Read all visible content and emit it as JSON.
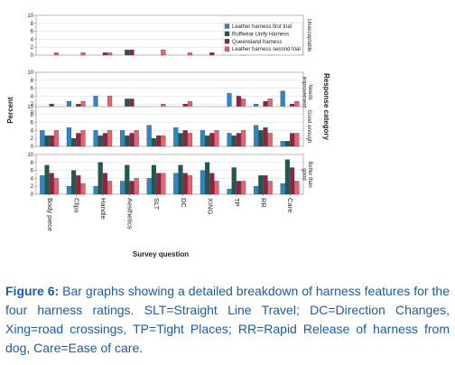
{
  "caption": {
    "label": "Figure 6:",
    "text": "Bar graphs showing a detailed breakdown of harness features for the four harness ratings. SLT=Straight Line Travel; DC=Direction Changes, Xing=road crossings, TP=Tight Places; RR=Rapid Release of harness from dog, Care=Ease of care."
  },
  "colors": {
    "Leather harness  first trial": "#2f86c6",
    "Ruffwear Unify Harness": "#1e5a4f",
    "Queensland harness": "#8e2444",
    "Leather harness second trial": "#e8636f"
  },
  "chart_data": {
    "type": "bar",
    "title": "",
    "xlabel": "Survey question",
    "ylabel": "Percent",
    "right_axis_label": "Response category",
    "ylim": [
      0,
      10
    ],
    "yticks": [
      0,
      2,
      4,
      6,
      8,
      10
    ],
    "categories": [
      "Body piece",
      "Clips",
      "Handle",
      "Aesthetics",
      "SLT",
      "DC",
      "XING",
      "TP",
      "RR",
      "Care"
    ],
    "legend": {
      "placement": "top-right",
      "entries": [
        "Leather harness  first trial",
        "Ruffwear Unify Harness",
        "Queensland harness",
        "Leather harness second trial"
      ]
    },
    "panels": [
      {
        "label": "Unacceptable",
        "series": [
          {
            "name": "Leather harness  first trial",
            "values": [
              0,
              0,
              0,
              0,
              0,
              0,
              0,
              0,
              0,
              0
            ]
          },
          {
            "name": "Ruffwear Unify Harness",
            "values": [
              0,
              0,
              0,
              1.3,
              0,
              0,
              0,
              0,
              0,
              0
            ]
          },
          {
            "name": "Queensland harness",
            "values": [
              0,
              0,
              0.6,
              1.3,
              0,
              0,
              0.6,
              0,
              0,
              0
            ]
          },
          {
            "name": "Leather harness second trial",
            "values": [
              0.6,
              0.6,
              0.6,
              0,
              1.3,
              0.6,
              0,
              0.6,
              0.6,
              0
            ]
          }
        ]
      },
      {
        "label": "Needs improvement",
        "series": [
          {
            "name": "Leather harness  first trial",
            "values": [
              1.3,
              2.7,
              4.0,
              1.3,
              0,
              0,
              0,
              4.7,
              2.0,
              5.3
            ]
          },
          {
            "name": "Ruffwear Unify Harness",
            "values": [
              0,
              1.3,
              0,
              3.3,
              1.3,
              1.3,
              1.3,
              1.3,
              1.3,
              0
            ]
          },
          {
            "name": "Queensland harness",
            "values": [
              2.0,
              2.0,
              1.3,
              3.3,
              1.3,
              2.0,
              1.3,
              4.0,
              2.7,
              2.0
            ]
          },
          {
            "name": "Leather harness second trial",
            "values": [
              1.3,
              2.7,
              4.0,
              0,
              2.0,
              2.7,
              0,
              3.3,
              3.3,
              2.7
            ]
          }
        ]
      },
      {
        "label": "Good enough",
        "series": [
          {
            "name": "Leather harness  first trial",
            "values": [
              4.0,
              4.7,
              4.0,
              4.0,
              5.3,
              4.7,
              4.0,
              3.3,
              5.3,
              1.3
            ]
          },
          {
            "name": "Ruffwear Unify Harness",
            "values": [
              2.7,
              2.0,
              2.7,
              2.7,
              2.0,
              3.3,
              2.7,
              2.7,
              4.0,
              1.3
            ]
          },
          {
            "name": "Queensland harness",
            "values": [
              2.7,
              3.3,
              3.3,
              3.3,
              2.7,
              4.0,
              3.3,
              3.3,
              4.7,
              3.3
            ]
          },
          {
            "name": "Leather harness second trial",
            "values": [
              4.0,
              4.0,
              4.0,
              4.0,
              2.7,
              3.3,
              4.0,
              4.0,
              3.3,
              3.3
            ]
          }
        ]
      },
      {
        "label": "Better than good",
        "series": [
          {
            "name": "Leather harness  first trial",
            "values": [
              4.7,
              2.0,
              2.0,
              3.3,
              4.0,
              5.3,
              6.0,
              1.3,
              2.0,
              2.7
            ]
          },
          {
            "name": "Ruffwear Unify Harness",
            "values": [
              7.3,
              6.0,
              8.0,
              7.3,
              7.3,
              7.3,
              8.0,
              6.7,
              4.7,
              8.7
            ]
          },
          {
            "name": "Queensland harness",
            "values": [
              5.3,
              4.7,
              5.3,
              3.3,
              5.3,
              5.3,
              5.3,
              3.3,
              4.7,
              6.7
            ]
          },
          {
            "name": "Leather harness second trial",
            "values": [
              4.0,
              2.7,
              3.3,
              4.0,
              5.3,
              4.7,
              3.3,
              3.3,
              3.3,
              3.3
            ]
          }
        ]
      }
    ]
  }
}
